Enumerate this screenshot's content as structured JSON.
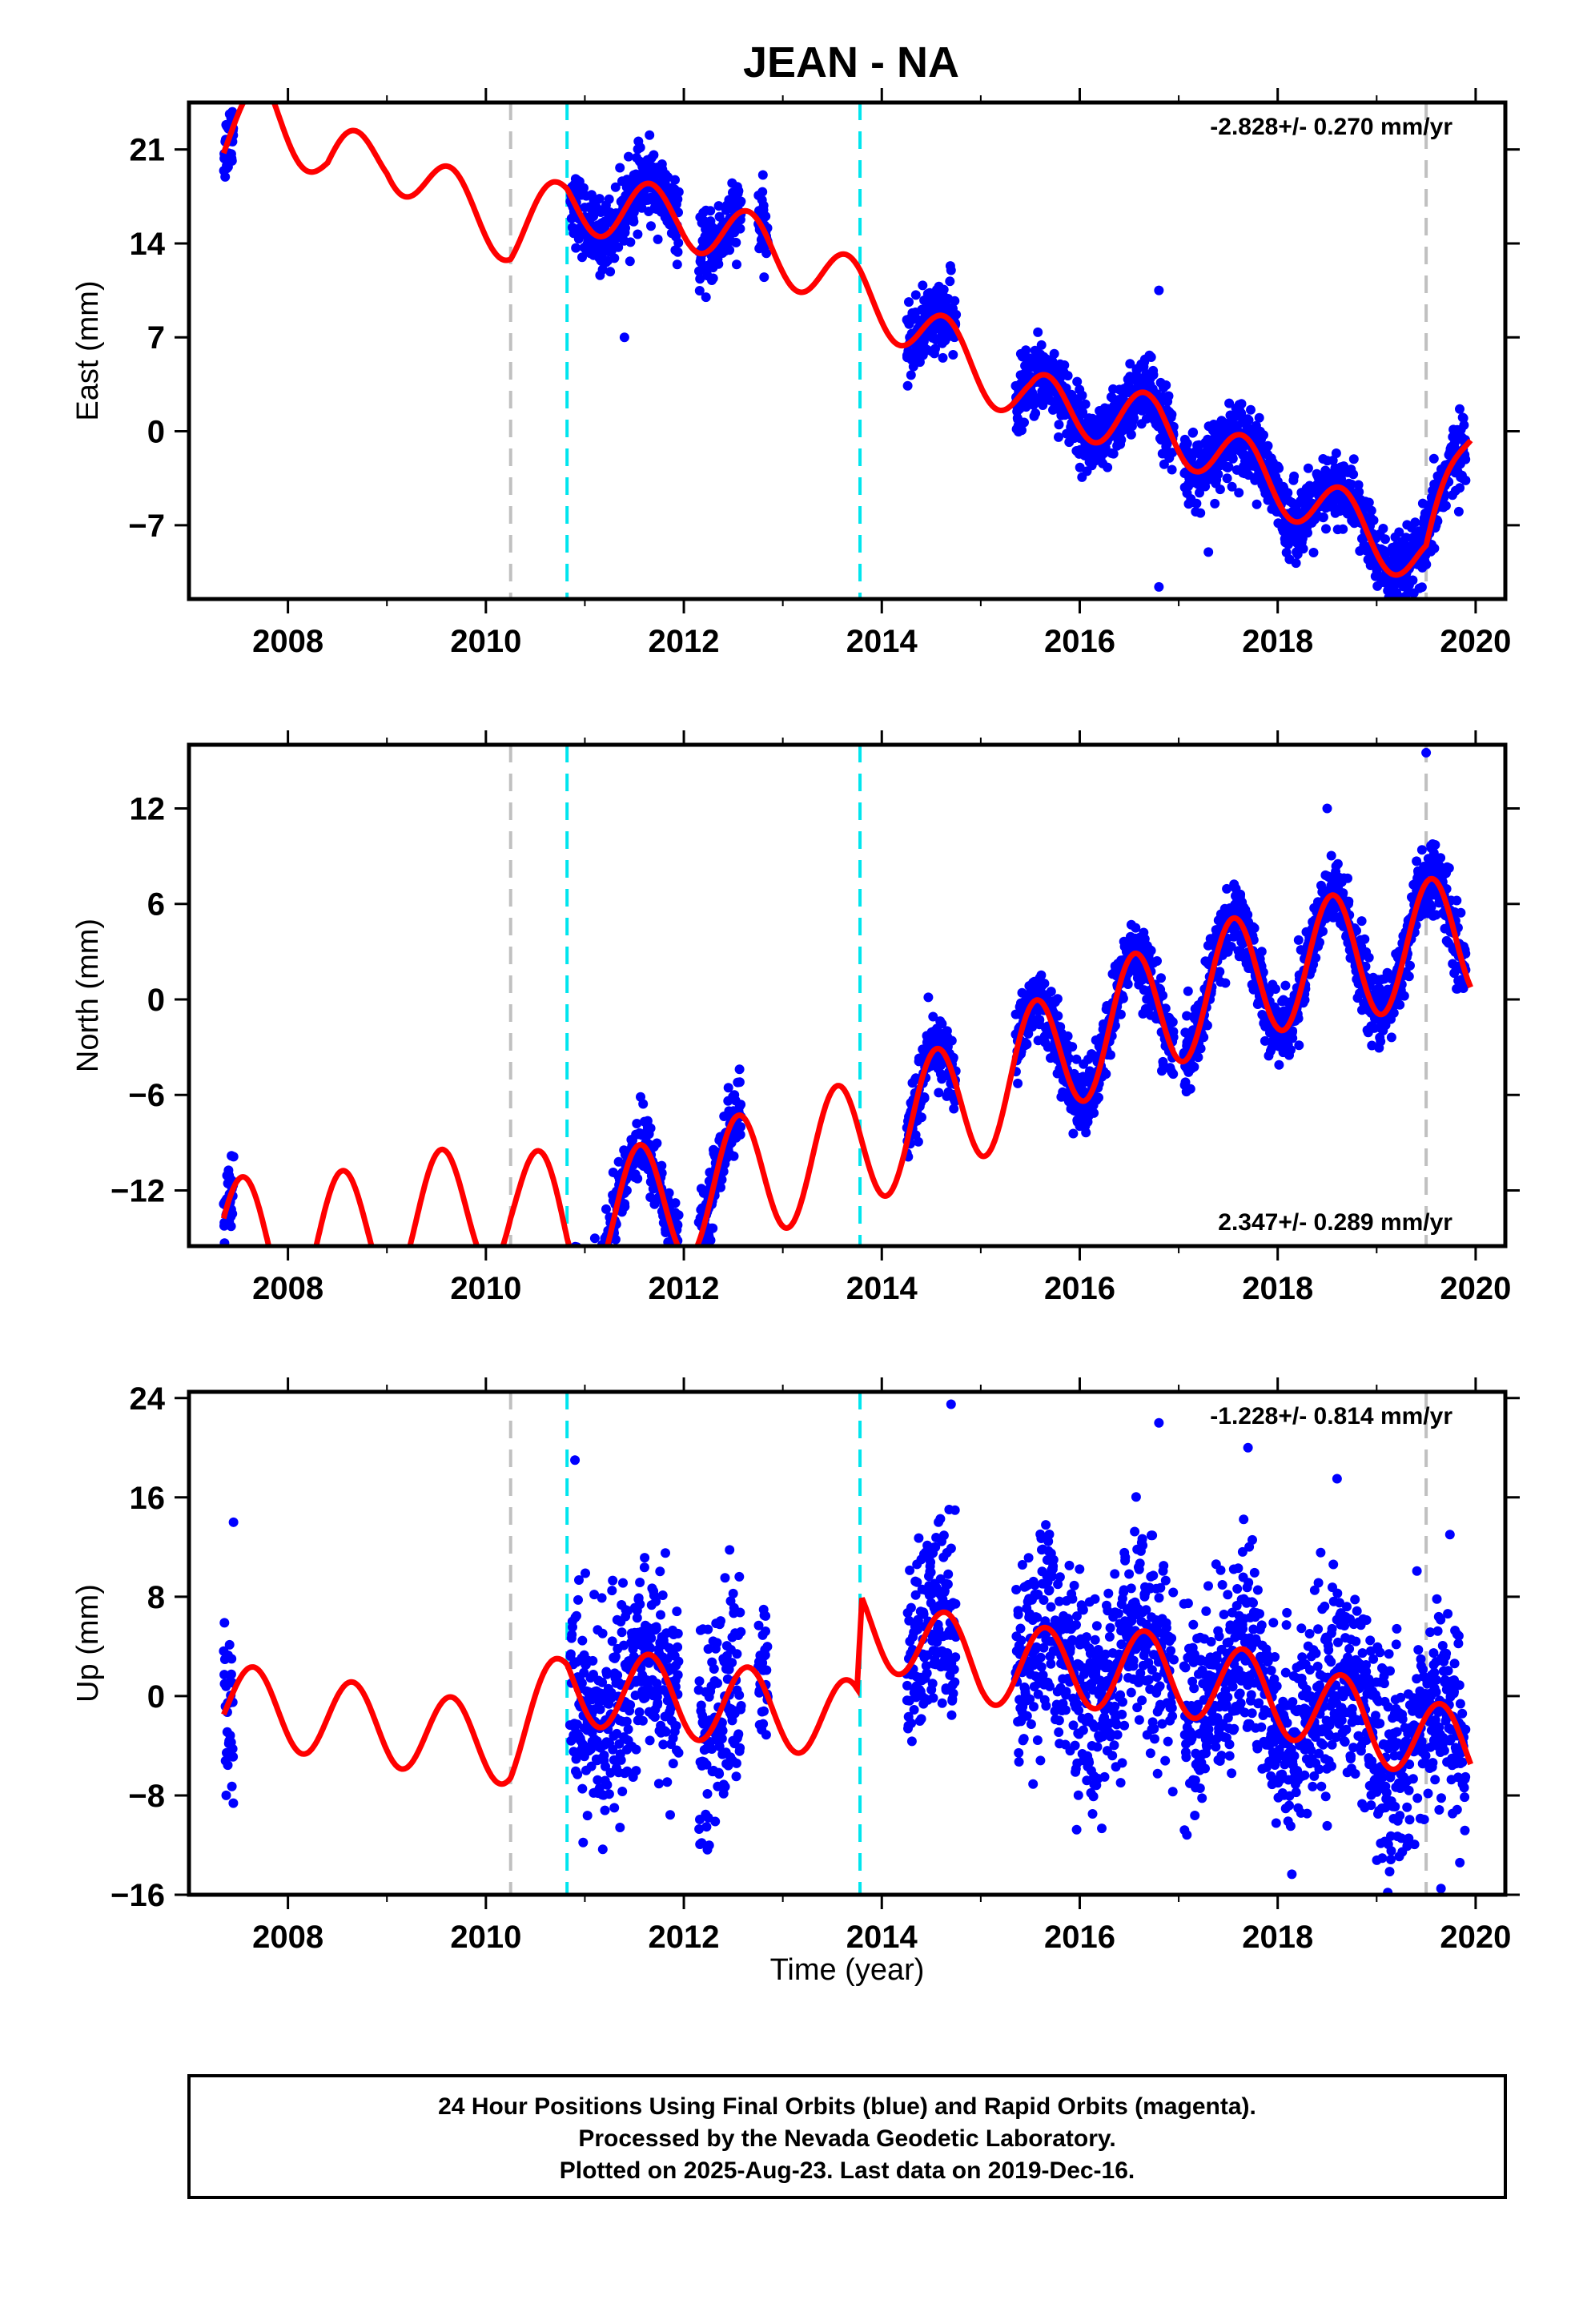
{
  "title": "JEAN - NA",
  "x_label": "Time (year)",
  "footer_lines": [
    "24 Hour Positions Using Final Orbits (blue) and Rapid Orbits (magenta).",
    "Processed by the Nevada Geodetic Laboratory.",
    "Plotted on 2025-Aug-23. Last data on 2019-Dec-16."
  ],
  "colors": {
    "final_orbit_points": "#0000ff",
    "model_fit": "#ff0000",
    "equipment_change": "#00e5ee",
    "other_event": "#c0c0c0"
  },
  "chart_data": [
    {
      "type": "scatter",
      "component": "East",
      "ylabel": "East (mm)",
      "xlim": [
        2007.0,
        2020.3
      ],
      "ylim": [
        -12.5,
        24.5
      ],
      "xticks": [
        2008,
        2010,
        2012,
        2014,
        2016,
        2018,
        2020
      ],
      "yticks": [
        -7,
        0,
        7,
        14,
        21
      ],
      "rate_label": "-2.828+/- 0.270 mm/yr",
      "rate_position": "top-right",
      "event_lines": [
        {
          "x": 2010.25,
          "kind": "other_event"
        },
        {
          "x": 2010.82,
          "kind": "equipment_change"
        },
        {
          "x": 2013.78,
          "kind": "equipment_change"
        },
        {
          "x": 2019.5,
          "kind": "other_event"
        }
      ],
      "data_segments": [
        [
          2007.35,
          2007.45
        ],
        [
          2010.85,
          2011.95
        ],
        [
          2012.15,
          2012.58
        ],
        [
          2012.75,
          2012.85
        ],
        [
          2014.25,
          2014.75
        ],
        [
          2015.35,
          2016.95
        ],
        [
          2017.05,
          2019.9
        ]
      ],
      "fit": {
        "knots": [
          [
            2007.35,
            21.4
          ],
          [
            2007.8,
            24.4
          ],
          [
            2008.4,
            20.0
          ],
          [
            2009.0,
            20.5
          ],
          [
            2010.25,
            14.6
          ],
          [
            2010.82,
            17.0
          ],
          [
            2011.95,
            16.0
          ],
          [
            2012.8,
            13.8
          ],
          [
            2013.78,
            10.5
          ],
          [
            2015.5,
            2.2
          ],
          [
            2016.8,
            0.5
          ],
          [
            2017.7,
            -2.7
          ],
          [
            2019.5,
            -9.8
          ],
          [
            2019.95,
            0.0
          ]
        ],
        "annual_amplitude": 2.2,
        "phase": 2007.4
      },
      "scatter": 1.3,
      "outliers": [
        [
          2011.4,
          7.0
        ],
        [
          2014.7,
          12.0
        ],
        [
          2016.8,
          10.5
        ],
        [
          2016.8,
          -11.6
        ],
        [
          2017.3,
          -9.0
        ]
      ]
    },
    {
      "type": "scatter",
      "component": "North",
      "ylabel": "North (mm)",
      "xlim": [
        2007.0,
        2020.3
      ],
      "ylim": [
        -15.5,
        16.0
      ],
      "xticks": [
        2008,
        2010,
        2012,
        2014,
        2016,
        2018,
        2020
      ],
      "yticks": [
        -12,
        -6,
        0,
        6,
        12
      ],
      "rate_label": "2.347+/- 0.289 mm/yr",
      "rate_position": "bottom-right",
      "event_lines": [
        {
          "x": 2010.25,
          "kind": "other_event"
        },
        {
          "x": 2010.82,
          "kind": "equipment_change"
        },
        {
          "x": 2013.78,
          "kind": "equipment_change"
        },
        {
          "x": 2019.5,
          "kind": "other_event"
        }
      ],
      "data_segments": [
        [
          2007.35,
          2007.45
        ],
        [
          2010.85,
          2011.95
        ],
        [
          2012.15,
          2012.58
        ],
        [
          2014.25,
          2014.75
        ],
        [
          2015.35,
          2016.95
        ],
        [
          2017.05,
          2019.9
        ]
      ],
      "fit": {
        "knots": [
          [
            2007.35,
            -15.0
          ],
          [
            2008.0,
            -15.5
          ],
          [
            2010.25,
            -12.5
          ],
          [
            2010.82,
            -14.5
          ],
          [
            2013.78,
            -9.0
          ],
          [
            2015.0,
            -6.0
          ],
          [
            2016.0,
            -2.5
          ],
          [
            2017.0,
            0.0
          ],
          [
            2018.0,
            2.0
          ],
          [
            2019.0,
            3.0
          ],
          [
            2019.95,
            4.0
          ]
        ],
        "annual_amplitude": 4.0,
        "phase": 2007.3
      },
      "scatter": 1.1,
      "outliers": [
        [
          2019.5,
          15.5
        ],
        [
          2018.5,
          12.0
        ]
      ]
    },
    {
      "type": "scatter",
      "component": "Up",
      "ylabel": "Up (mm)",
      "xlim": [
        2007.0,
        2020.3
      ],
      "ylim": [
        -16.0,
        24.5
      ],
      "xticks": [
        2008,
        2010,
        2012,
        2014,
        2016,
        2018,
        2020
      ],
      "yticks": [
        -16,
        -8,
        0,
        8,
        16,
        24
      ],
      "rate_label": "-1.228+/- 0.814 mm/yr",
      "rate_position": "top-right",
      "event_lines": [
        {
          "x": 2010.25,
          "kind": "other_event"
        },
        {
          "x": 2010.82,
          "kind": "equipment_change"
        },
        {
          "x": 2013.78,
          "kind": "equipment_change"
        },
        {
          "x": 2019.5,
          "kind": "other_event"
        }
      ],
      "data_segments": [
        [
          2007.35,
          2007.45
        ],
        [
          2010.85,
          2011.95
        ],
        [
          2012.15,
          2012.58
        ],
        [
          2012.75,
          2012.85
        ],
        [
          2014.25,
          2014.75
        ],
        [
          2015.35,
          2016.95
        ],
        [
          2017.05,
          2019.9
        ]
      ],
      "fit": {
        "knots": [
          [
            2007.35,
            -0.5
          ],
          [
            2010.25,
            -4.0
          ],
          [
            2010.82,
            1.0
          ],
          [
            2013.75,
            -2.0
          ],
          [
            2013.8,
            6.0
          ],
          [
            2015.0,
            2.5
          ],
          [
            2016.8,
            2.0
          ],
          [
            2018.0,
            0.0
          ],
          [
            2019.5,
            -3.5
          ],
          [
            2019.95,
            -4.5
          ]
        ],
        "annual_amplitude": 3.2,
        "phase": 2007.4
      },
      "scatter": 4.0,
      "outliers": [
        [
          2010.9,
          19.0
        ],
        [
          2007.45,
          14.0
        ],
        [
          2014.7,
          23.5
        ],
        [
          2016.8,
          22.0
        ],
        [
          2017.7,
          20.0
        ],
        [
          2018.6,
          17.5
        ],
        [
          2019.65,
          -15.5
        ]
      ]
    }
  ]
}
